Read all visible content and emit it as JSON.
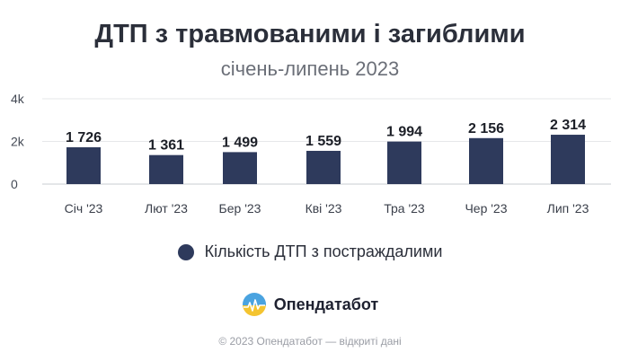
{
  "header": {
    "title": "ДТП з травмованими і загиблими",
    "subtitle": "січень-липень 2023"
  },
  "chart_data": {
    "type": "bar",
    "categories": [
      "Січ '23",
      "Лют '23",
      "Бер '23",
      "Кві '23",
      "Тра '23",
      "Чер '23",
      "Лип '23"
    ],
    "series": [
      {
        "name": "Кількість ДТП з постраждалими",
        "values": [
          1726,
          1361,
          1499,
          1559,
          1994,
          2156,
          2314
        ],
        "labels": [
          "1 726",
          "1 361",
          "1 499",
          "1 559",
          "1 994",
          "2 156",
          "2 314"
        ]
      }
    ],
    "yticks": [
      0,
      2000,
      4000
    ],
    "ytick_labels": [
      "0",
      "2k",
      "4k"
    ],
    "ylim": [
      0,
      4000
    ],
    "grid": true,
    "legend_position": "bottom",
    "bar_color": "#2e3a5c"
  },
  "brand": {
    "name": "Опендатабот",
    "logo_icon": "opendatabot-logo-icon"
  },
  "footer": {
    "text": "© 2023 Опендатабот — відкриті дані"
  }
}
